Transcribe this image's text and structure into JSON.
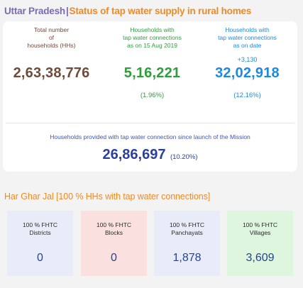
{
  "header": {
    "state": "Uttar Pradesh",
    "separator": "|",
    "title": "Status of tap water supply in rural homes"
  },
  "stats": {
    "total": {
      "label_line1": "Total number",
      "label_line2": "of",
      "label_line3": "households (HHs)",
      "value": "2,63,38,776"
    },
    "baseline": {
      "label_line1": "Households with",
      "label_line2": "tap water connections",
      "label_line3": "as on 15 Aug 2019",
      "value": "5,16,221",
      "percent": "(1.96%)"
    },
    "current": {
      "label_line1": "Households with",
      "label_line2": "tap water connections",
      "label_line3": "as on date",
      "delta": "+3,130",
      "value": "32,02,918",
      "percent": "(12.16%)"
    }
  },
  "mission": {
    "label": "Households provided with tap water connection since launch of the Mission",
    "value": "26,86,697",
    "percent": "(10.20%)"
  },
  "har_ghar_jal": {
    "title": "Har Ghar Jal [100 % HHs with tap water connections]",
    "tiles": [
      {
        "line1": "100 % FHTC",
        "line2": "Districts",
        "value": "0",
        "bg": "#e7ecf8"
      },
      {
        "line1": "100 % FHTC",
        "line2": "Blocks",
        "value": "0",
        "bg": "#fbe0e0"
      },
      {
        "line1": "100 % FHTC",
        "line2": "Panchayats",
        "value": "1,878",
        "bg": "#e7ecf8"
      },
      {
        "line1": "100 % FHTC",
        "line2": "Villages",
        "value": "3,609",
        "bg": "#def5de"
      }
    ]
  },
  "colors": {
    "accent_orange": "#f08a24",
    "state_purple": "#7a6bb6",
    "total_brown": "#6e4b3a",
    "baseline_green": "#2e9e3c",
    "current_blue": "#1e88e5",
    "mission_navy": "#2a3f9e"
  }
}
